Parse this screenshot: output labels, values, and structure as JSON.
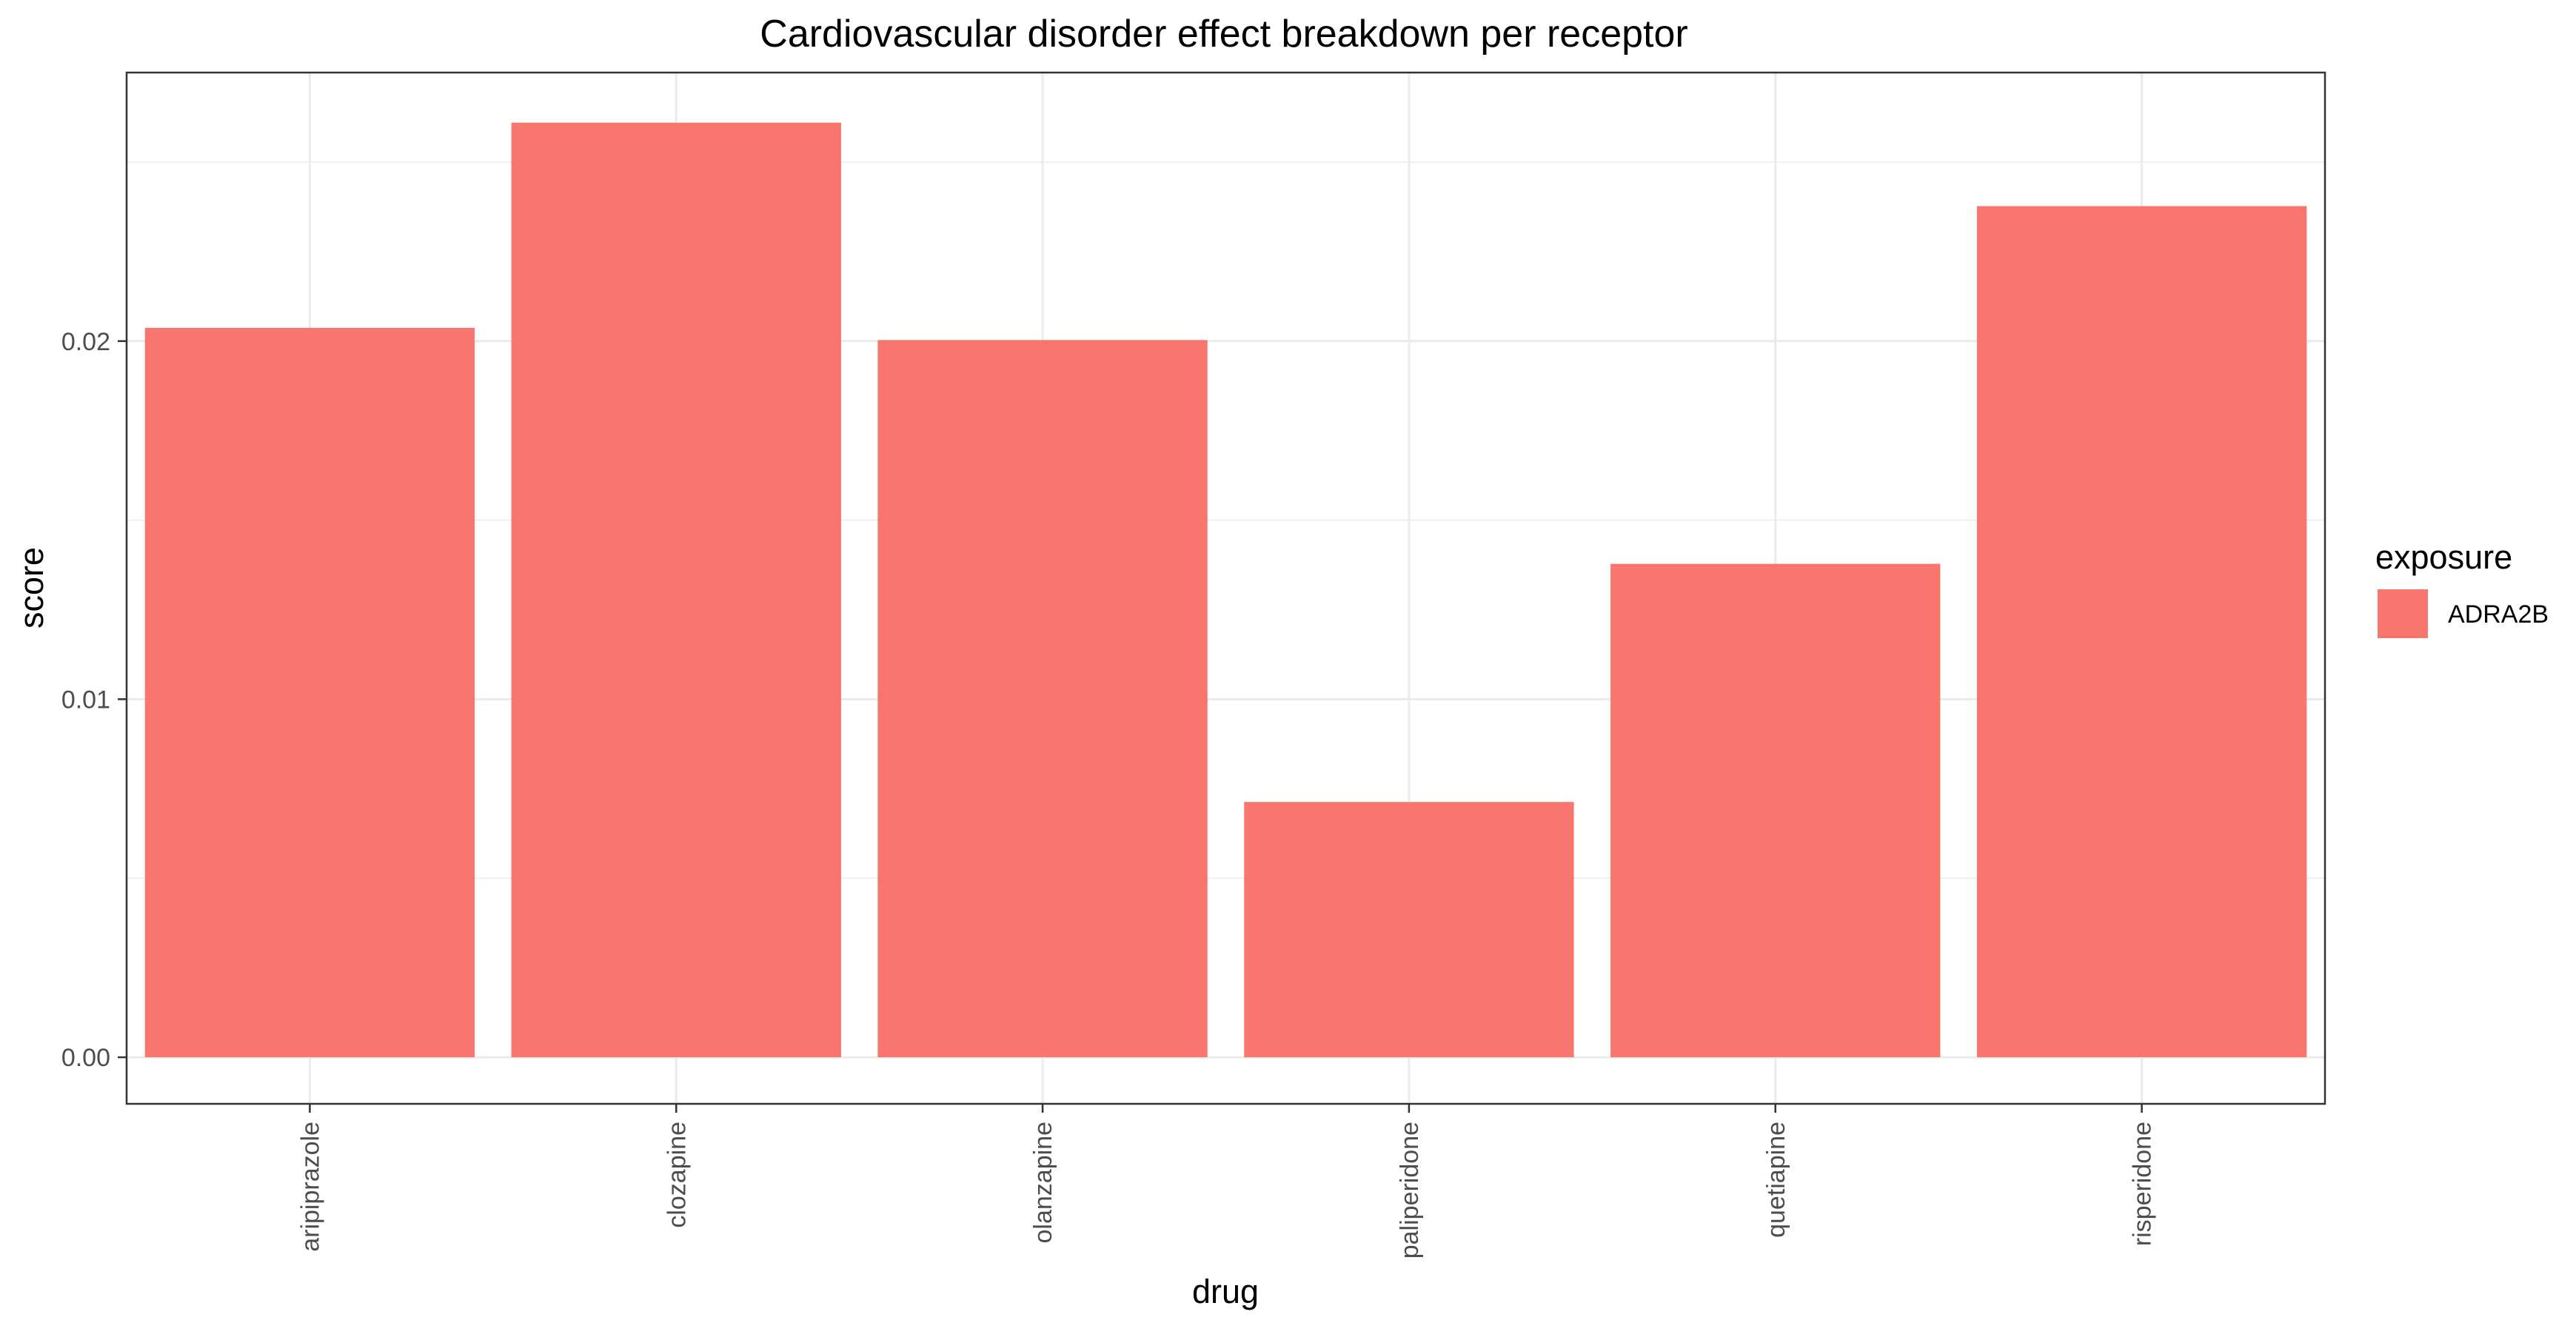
{
  "chart_data": {
    "type": "bar",
    "title": "Cardiovascular disorder effect breakdown per receptor",
    "xlabel": "drug",
    "ylabel": "score",
    "categories": [
      "aripiprazole",
      "clozapine",
      "olanzapine",
      "paliperidone",
      "quetiapine",
      "risperidone"
    ],
    "series": [
      {
        "name": "ADRA2B",
        "values": [
          0.02037,
          0.0261,
          0.02003,
          0.00713,
          0.01378,
          0.02377
        ],
        "color": "#F8766D"
      }
    ],
    "yticks": [
      0.0,
      0.01,
      0.02
    ],
    "ytick_labels": [
      "0.00",
      "0.01",
      "0.02"
    ],
    "ylim": [
      -0.0013,
      0.0275
    ],
    "legend": {
      "title": "exposure",
      "placement": "right"
    },
    "grid": true
  }
}
